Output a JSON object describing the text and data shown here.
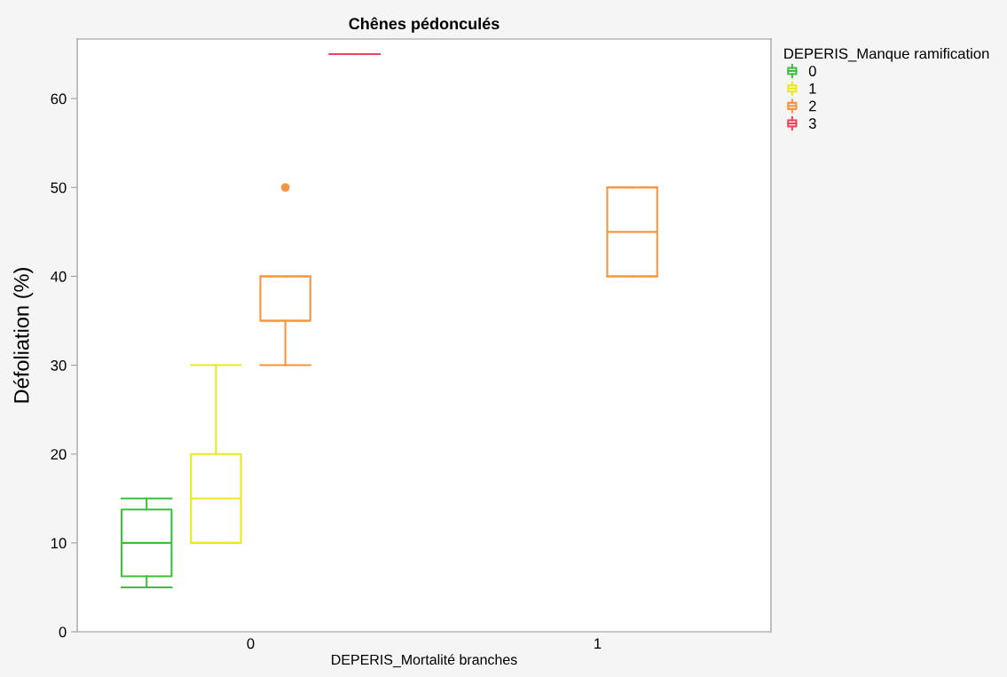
{
  "chart_data": {
    "type": "box",
    "title": "Chênes pédonculés",
    "xlabel": "DEPERIS_Mortalité branches",
    "ylabel": "Défoliation (%)",
    "legend_title": "DEPERIS_Manque ramification",
    "legend": "top right",
    "categories": [
      "0",
      "1"
    ],
    "series": [
      {
        "name": "0",
        "color": "#3cbf3c",
        "boxes": [
          {
            "low": 5,
            "q1": 6.25,
            "median": 10,
            "q3": 13.75,
            "high": 15
          },
          null
        ]
      },
      {
        "name": "1",
        "color": "#ece81e",
        "boxes": [
          {
            "low": 10,
            "q1": 10,
            "median": 15,
            "q3": 20,
            "high": 30
          },
          null
        ]
      },
      {
        "name": "2",
        "color": "#f7953f",
        "boxes": [
          {
            "low": 30,
            "q1": 35,
            "median": 35,
            "q3": 40,
            "high": 40,
            "outliers": [
              50
            ]
          },
          {
            "low": 40,
            "q1": 40,
            "median": 45,
            "q3": 50,
            "high": 50
          }
        ]
      },
      {
        "name": "3",
        "color": "#e8455c",
        "boxes": [
          {
            "low": 65,
            "q1": 65,
            "median": 65,
            "q3": 65,
            "high": 65
          },
          null
        ]
      }
    ],
    "ylim": [
      0,
      66.7
    ],
    "yticks": [
      0,
      10,
      20,
      30,
      40,
      50,
      60
    ]
  }
}
